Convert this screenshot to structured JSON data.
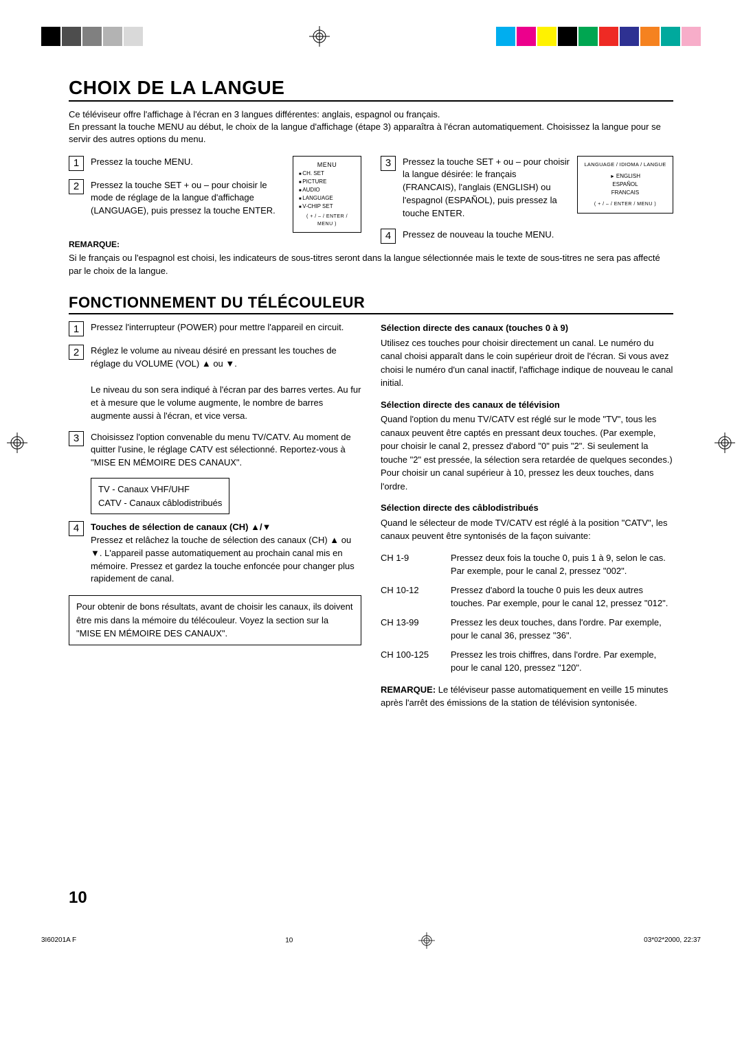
{
  "colors": {
    "top_bars": [
      "#000000",
      "#4d4d4d",
      "#808080",
      "#b3b3b3",
      "#d9d9d9"
    ],
    "bottom_bars": [
      "#00aeef",
      "#ec008c",
      "#fff200",
      "#000000",
      "#00a651",
      "#ee2a24",
      "#2e3192",
      "#f58220",
      "#00a99d",
      "#f7adc9"
    ]
  },
  "title1": "CHOIX DE LA LANGUE",
  "intro": "Ce téléviseur offre l'affichage à l'écran en 3 langues différentes: anglais, espagnol ou français.\nEn pressant la touche MENU au début, le choix de la langue d'affichage (étape 3) apparaîtra à l'écran automatiquement. Choisissez la langue pour se servir des autres options du menu.",
  "lang_steps": {
    "s1": "Pressez la touche MENU.",
    "s2": "Pressez la touche SET + ou – pour choisir le mode de réglage de la langue d'affichage (LANGUAGE), puis pressez la touche ENTER.",
    "s3": "Pressez la touche SET + ou – pour choisir la langue désirée: le français (FRANCAIS), l'anglais (ENGLISH) ou l'espagnol (ESPAÑOL), puis pressez la touche ENTER.",
    "s4": "Pressez de nouveau la touche MENU."
  },
  "menu_box": {
    "header": "MENU",
    "items": [
      "CH. SET",
      "PICTURE",
      "AUDIO",
      "LANGUAGE",
      "V-CHIP SET"
    ],
    "hint": "( + / – / ENTER / MENU )"
  },
  "lang_box": {
    "header": "LANGUAGE / IDIOMA / LANGUE",
    "items": [
      "ENGLISH",
      "ESPAÑOL",
      "FRANCAIS"
    ],
    "hint": "( + / – / ENTER / MENU )"
  },
  "remarque_label": "REMARQUE:",
  "remarque_text": "Si le français ou l'espagnol est choisi, les indicateurs de sous-titres seront dans la langue sélectionnée mais le texte de sous-titres ne sera pas affecté par le choix de la langue.",
  "title2": "FONCTIONNEMENT DU TÉLÉCOULEUR",
  "left": {
    "s1": "Pressez l'interrupteur (POWER) pour mettre l'appareil en circuit.",
    "s2": "Réglez le volume au niveau désiré en pressant les touches de réglage du VOLUME (VOL) ▲ ou ▼.",
    "s2b": "Le niveau du son sera indiqué à l'écran par des barres vertes. Au fur et à mesure que le volume augmente, le nombre de barres augmente aussi à l'écran, et vice versa.",
    "s3": "Choisissez l'option convenable du menu TV/CATV. Au moment de quitter l'usine, le réglage CATV est sélectionné. Reportez-vous à \"MISE EN MÉMOIRE DES CANAUX\".",
    "box": "TV - Canaux VHF/UHF\nCATV - Canaux câblodistribués",
    "s4_title": "Touches de sélection de canaux (CH) ▲/▼",
    "s4_text": "Pressez et relâchez la touche de sélection des canaux (CH) ▲ ou ▼. L'appareil passe automatiquement au prochain canal mis en mémoire. Pressez et gardez la touche enfoncée pour changer plus rapidement de canal.",
    "bottom_box": "Pour obtenir de bons résultats, avant de choisir les canaux, ils doivent être mis dans la mémoire du télécouleur. Voyez la section sur la \"MISE EN MÉMOIRE DES CANAUX\"."
  },
  "right": {
    "r1_title": "Sélection directe des canaux (touches 0 à 9)",
    "r1_text": "Utilisez ces touches pour choisir directement un canal. Le numéro du canal choisi apparaît dans le coin supérieur droit de l'écran. Si vous avez choisi le numéro d'un canal inactif, l'affichage indique de nouveau le canal initial.",
    "r2_title": "Sélection directe des canaux de télévision",
    "r2_text": "Quand l'option du menu TV/CATV est réglé sur le mode \"TV\", tous les canaux peuvent être captés en pressant deux touches. (Par exemple, pour choisir le canal 2, pressez d'abord \"0\" puis \"2\". Si seulement la touche \"2\" est pressée, la sélection sera retardée de quelques secondes.) Pour choisir un canal supérieur à 10, pressez les deux touches, dans l'ordre.",
    "r3_title": "Sélection directe des câblodistribués",
    "r3_text": "Quand le sélecteur de mode TV/CATV est réglé à la position \"CATV\", les canaux peuvent être syntonisés de la façon suivante:",
    "ch_rows": [
      {
        "label": "CH 1-9",
        "desc": "Pressez deux fois la touche 0, puis 1 à 9, selon le cas. Par exemple, pour le canal 2, pressez \"002\"."
      },
      {
        "label": "CH 10-12",
        "desc": "Pressez d'abord la touche 0 puis les deux autres touches. Par exemple, pour le canal 12, pressez \"012\"."
      },
      {
        "label": "CH 13-99",
        "desc": "Pressez les deux touches, dans l'ordre. Par exemple, pour le canal 36, pressez \"36\"."
      },
      {
        "label": "CH 100-125",
        "desc": "Pressez les trois chiffres, dans l'ordre. Par exemple, pour le canal 120, pressez \"120\"."
      }
    ],
    "rem_label": "REMARQUE:",
    "rem_text": " Le téléviseur passe automatiquement en veille 15 minutes après l'arrêt des émissions de la station de télévision syntonisée."
  },
  "page_number": "10",
  "footer": {
    "left": "3I60201A F",
    "mid": "10",
    "right": "03*02*2000, 22:37"
  }
}
